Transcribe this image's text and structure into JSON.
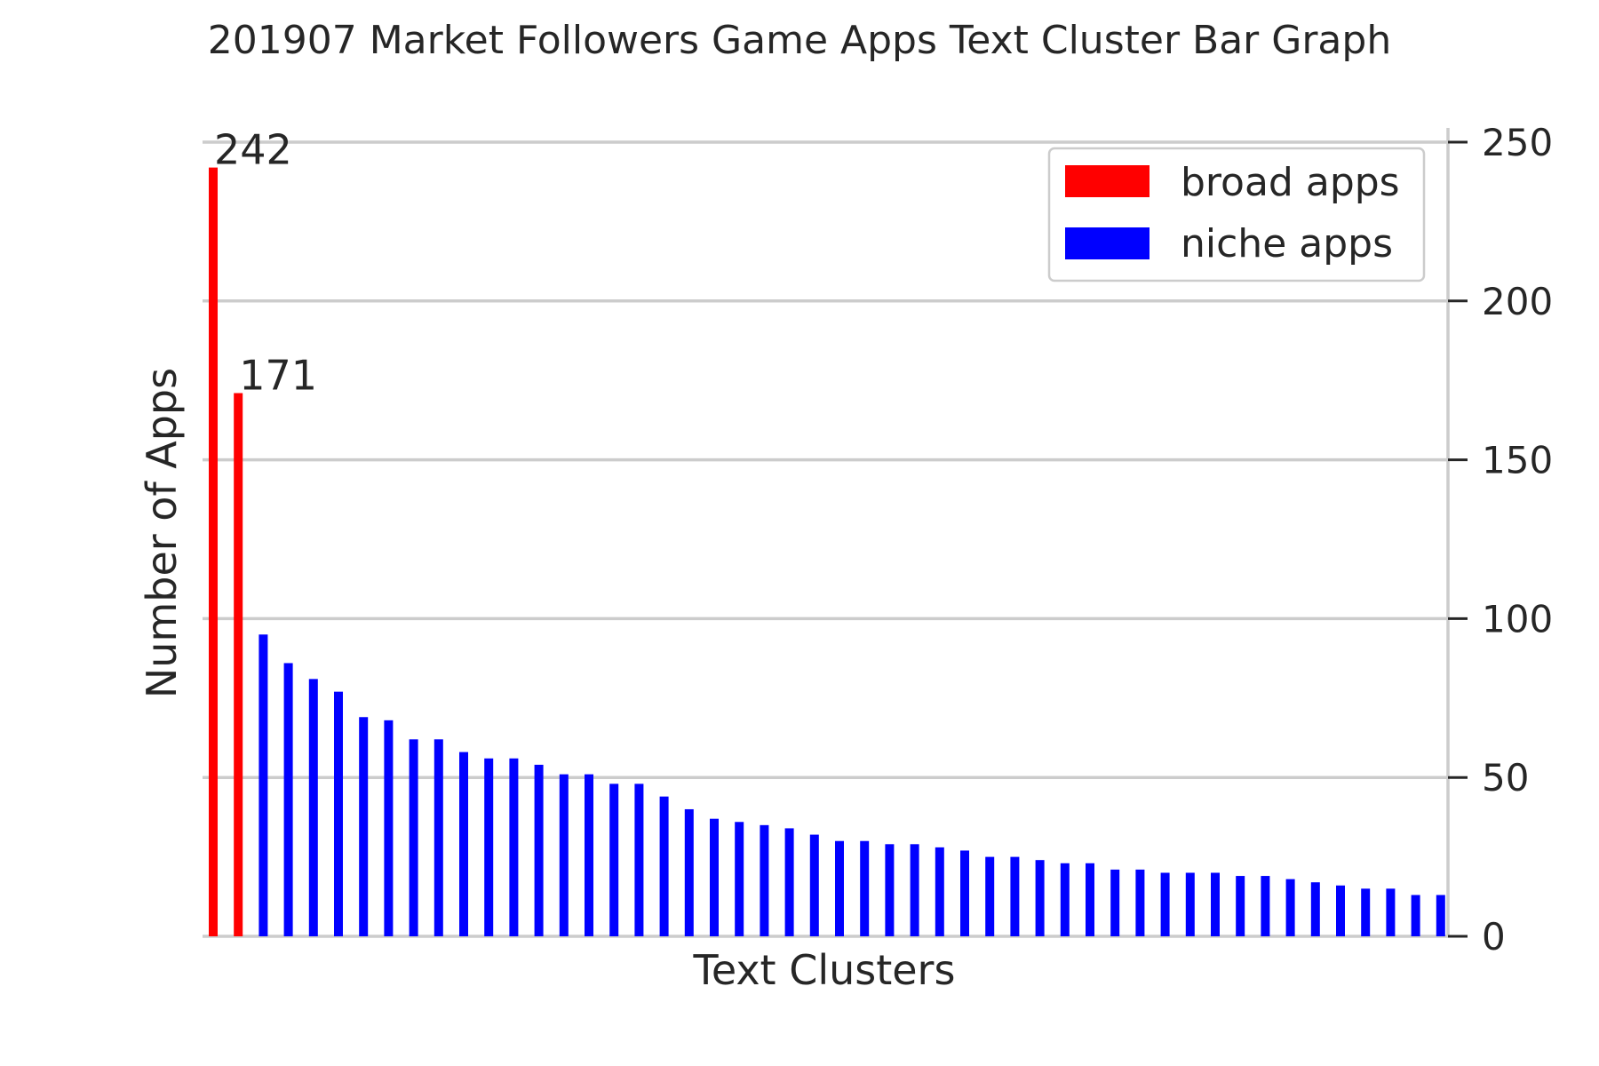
{
  "chart_data": {
    "type": "bar",
    "title": "201907 Market Followers Game Apps Text Cluster Bar Graph",
    "xlabel": "Text Clusters",
    "ylabel": "Number of Apps",
    "ylim": [
      0,
      250
    ],
    "yticks": [
      0,
      50,
      100,
      150,
      200,
      250
    ],
    "y_axis_side": "right",
    "grid": "horizontal",
    "legend_position": "top-right",
    "series": [
      {
        "name": "broad apps",
        "color": "#ff0000",
        "values": [
          242,
          171,
          null,
          null,
          null,
          null,
          null,
          null,
          null,
          null,
          null,
          null,
          null,
          null,
          null,
          null,
          null,
          null,
          null,
          null,
          null,
          null,
          null,
          null,
          null,
          null,
          null,
          null,
          null,
          null,
          null,
          null,
          null,
          null,
          null,
          null,
          null,
          null,
          null,
          null,
          null,
          null,
          null,
          null,
          null,
          null,
          null,
          null,
          null,
          null
        ]
      },
      {
        "name": "niche apps",
        "color": "#0000ff",
        "values": [
          null,
          null,
          95,
          86,
          81,
          77,
          69,
          68,
          62,
          62,
          58,
          56,
          56,
          54,
          51,
          51,
          48,
          48,
          44,
          40,
          37,
          36,
          35,
          34,
          32,
          30,
          30,
          29,
          29,
          28,
          27,
          25,
          25,
          24,
          23,
          23,
          21,
          21,
          20,
          20,
          20,
          19,
          19,
          18,
          17,
          16,
          15,
          15,
          13,
          13
        ]
      }
    ],
    "values": [
      242,
      171,
      95,
      86,
      81,
      77,
      69,
      68,
      62,
      62,
      58,
      56,
      56,
      54,
      51,
      51,
      48,
      48,
      44,
      40,
      37,
      36,
      35,
      34,
      32,
      30,
      30,
      29,
      29,
      28,
      27,
      25,
      25,
      24,
      23,
      23,
      21,
      21,
      20,
      20,
      20,
      19,
      19,
      18,
      17,
      16,
      15,
      15,
      13,
      13
    ],
    "annotations": [
      {
        "index": 0,
        "text": "242"
      },
      {
        "index": 1,
        "text": "171"
      }
    ]
  }
}
